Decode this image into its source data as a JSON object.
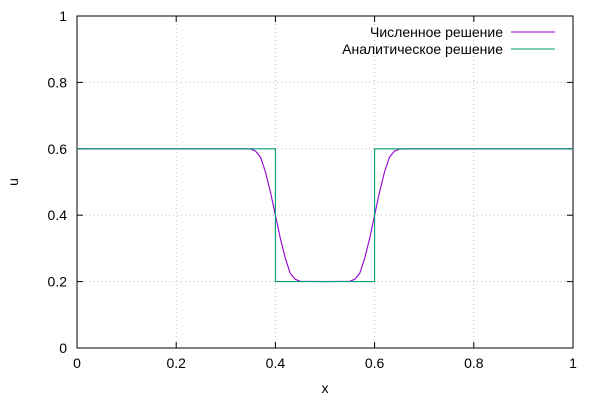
{
  "chart_data": {
    "type": "line",
    "xlabel": "x",
    "ylabel": "u",
    "xlim": [
      0,
      1
    ],
    "ylim": [
      0,
      1
    ],
    "xticks": [
      "0",
      "0.2",
      "0.4",
      "0.6",
      "0.8",
      "1"
    ],
    "yticks": [
      "0",
      "0.2",
      "0.4",
      "0.6",
      "0.8",
      "1"
    ],
    "grid": true,
    "legend_position": "top-right",
    "series": [
      {
        "name": "Численное решение",
        "color": "#9400d3",
        "x": [
          0,
          0.3,
          0.34,
          0.35,
          0.36,
          0.37,
          0.38,
          0.39,
          0.4,
          0.41,
          0.42,
          0.43,
          0.44,
          0.45,
          0.5,
          0.55,
          0.56,
          0.57,
          0.58,
          0.59,
          0.6,
          0.61,
          0.62,
          0.63,
          0.64,
          0.65,
          0.66,
          0.7,
          1
        ],
        "y": [
          0.6,
          0.6,
          0.6,
          0.599,
          0.593,
          0.575,
          0.53,
          0.47,
          0.4,
          0.33,
          0.27,
          0.225,
          0.207,
          0.201,
          0.2,
          0.201,
          0.207,
          0.225,
          0.27,
          0.33,
          0.4,
          0.47,
          0.53,
          0.575,
          0.593,
          0.599,
          0.6,
          0.6,
          0.6
        ]
      },
      {
        "name": "Аналитическое решение",
        "color": "#009e73",
        "x": [
          0,
          0.4,
          0.4,
          0.6,
          0.6,
          1
        ],
        "y": [
          0.6,
          0.6,
          0.2,
          0.2,
          0.6,
          0.6
        ]
      }
    ]
  }
}
